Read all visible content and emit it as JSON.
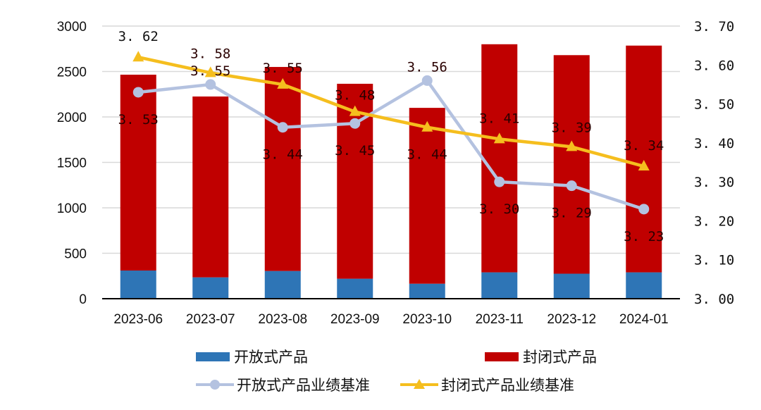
{
  "chart_data": {
    "type": "bar",
    "subtype": "stacked-bar-with-dual-axis-lines",
    "categories": [
      "2023-06",
      "2023-07",
      "2023-08",
      "2023-09",
      "2023-10",
      "2023-11",
      "2023-12",
      "2024-01"
    ],
    "series": [
      {
        "name": "开放式产品",
        "kind": "bar",
        "axis": "left",
        "color": "#2E75B6",
        "values": [
          310,
          235,
          305,
          220,
          165,
          290,
          275,
          290
        ]
      },
      {
        "name": "封闭式产品",
        "kind": "bar",
        "axis": "left",
        "color": "#C00000",
        "values": [
          2155,
          1990,
          2245,
          2145,
          1935,
          2510,
          2405,
          2495
        ]
      },
      {
        "name": "开放式产品业绩基准",
        "kind": "line",
        "axis": "right",
        "color": "#B4C2E0",
        "marker": "circle",
        "values": [
          3.53,
          3.55,
          3.44,
          3.45,
          3.56,
          3.3,
          3.29,
          3.23
        ],
        "labels": [
          "3.53",
          "3.55",
          "3.44",
          "3.45",
          "3.56",
          "3.30",
          "3.29",
          "3.23"
        ]
      },
      {
        "name": "封闭式产品业绩基准",
        "kind": "line",
        "axis": "right",
        "color": "#F5BE1E",
        "marker": "triangle",
        "values": [
          3.62,
          3.58,
          3.55,
          3.48,
          3.44,
          3.41,
          3.39,
          3.34
        ],
        "labels": [
          "3.62",
          "3.58",
          "3.55",
          "3.48",
          "3.44",
          "3.41",
          "3.39",
          "3.34"
        ]
      }
    ],
    "left_axis": {
      "ylim": [
        0,
        3000
      ],
      "ticks": [
        "0",
        "500",
        "1000",
        "1500",
        "2000",
        "2500",
        "3000"
      ]
    },
    "right_axis": {
      "ylim": [
        3.0,
        3.7
      ],
      "ticks": [
        "3. 00",
        "3. 10",
        "3. 20",
        "3. 30",
        "3. 40",
        "3. 50",
        "3. 60",
        "3. 70"
      ]
    },
    "title": "",
    "xlabel": "",
    "ylabel": "",
    "grid": true,
    "legend_position": "bottom"
  },
  "legend": {
    "items": [
      "开放式产品",
      "封闭式产品",
      "开放式产品业绩基准",
      "封闭式产品业绩基准"
    ]
  }
}
